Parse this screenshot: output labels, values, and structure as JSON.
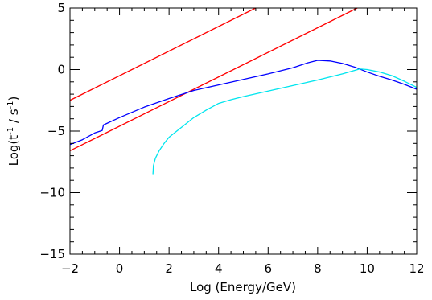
{
  "chart_data": {
    "type": "line",
    "title": "",
    "xlabel": "Log (Energy/GeV)",
    "ylabel_parts": {
      "base": "Log(t",
      "sup1": "-1",
      "mid": " / s",
      "sup2": "-1",
      "end": ")"
    },
    "xlim": [
      -2,
      12
    ],
    "ylim": [
      -15,
      5
    ],
    "x_ticks": [
      -2,
      0,
      2,
      4,
      6,
      8,
      10,
      12
    ],
    "x_tick_labels": [
      "−2",
      "0",
      "2",
      "4",
      "6",
      "8",
      "10",
      "12"
    ],
    "y_ticks": [
      -15,
      -10,
      -5,
      0,
      5
    ],
    "y_tick_labels": [
      "−15",
      "−10",
      "−5",
      "0",
      "5"
    ],
    "x_minor_step": 0.5,
    "y_minor_step": 1,
    "grid": false,
    "legend": "none",
    "series": [
      {
        "color": "#ff0000",
        "points": [
          [
            -2,
            -2.5
          ],
          [
            5.5,
            5.0
          ]
        ]
      },
      {
        "color": "#ff0000",
        "points": [
          [
            -2,
            -6.6
          ],
          [
            9.6,
            5.0
          ]
        ]
      },
      {
        "color": "#0000ff",
        "points": [
          [
            -2,
            -6.1
          ],
          [
            -1.5,
            -5.7
          ],
          [
            -1.0,
            -5.15
          ],
          [
            -0.7,
            -4.95
          ],
          [
            -0.65,
            -4.5
          ],
          [
            0.0,
            -3.9
          ],
          [
            1.0,
            -3.05
          ],
          [
            2.0,
            -2.35
          ],
          [
            3.0,
            -1.7
          ],
          [
            4.0,
            -1.25
          ],
          [
            5.0,
            -0.8
          ],
          [
            6.0,
            -0.35
          ],
          [
            7.0,
            0.15
          ],
          [
            7.6,
            0.55
          ],
          [
            8.0,
            0.75
          ],
          [
            8.5,
            0.7
          ],
          [
            9.0,
            0.5
          ],
          [
            9.5,
            0.2
          ],
          [
            10.0,
            -0.2
          ],
          [
            10.5,
            -0.55
          ],
          [
            11.0,
            -0.85
          ],
          [
            11.5,
            -1.2
          ],
          [
            12.0,
            -1.6
          ]
        ]
      },
      {
        "color": "#00e5ee",
        "points": [
          [
            1.35,
            -8.5
          ],
          [
            1.37,
            -7.8
          ],
          [
            1.45,
            -7.2
          ],
          [
            1.6,
            -6.6
          ],
          [
            1.8,
            -6.0
          ],
          [
            2.0,
            -5.5
          ],
          [
            2.5,
            -4.7
          ],
          [
            3.0,
            -3.9
          ],
          [
            3.5,
            -3.3
          ],
          [
            4.0,
            -2.75
          ],
          [
            4.5,
            -2.45
          ],
          [
            5.0,
            -2.2
          ],
          [
            6.0,
            -1.75
          ],
          [
            7.0,
            -1.3
          ],
          [
            8.0,
            -0.85
          ],
          [
            9.0,
            -0.35
          ],
          [
            9.7,
            0.05
          ],
          [
            10.0,
            0.0
          ],
          [
            10.5,
            -0.2
          ],
          [
            11.0,
            -0.5
          ],
          [
            11.5,
            -0.95
          ],
          [
            12.0,
            -1.45
          ]
        ]
      }
    ]
  }
}
